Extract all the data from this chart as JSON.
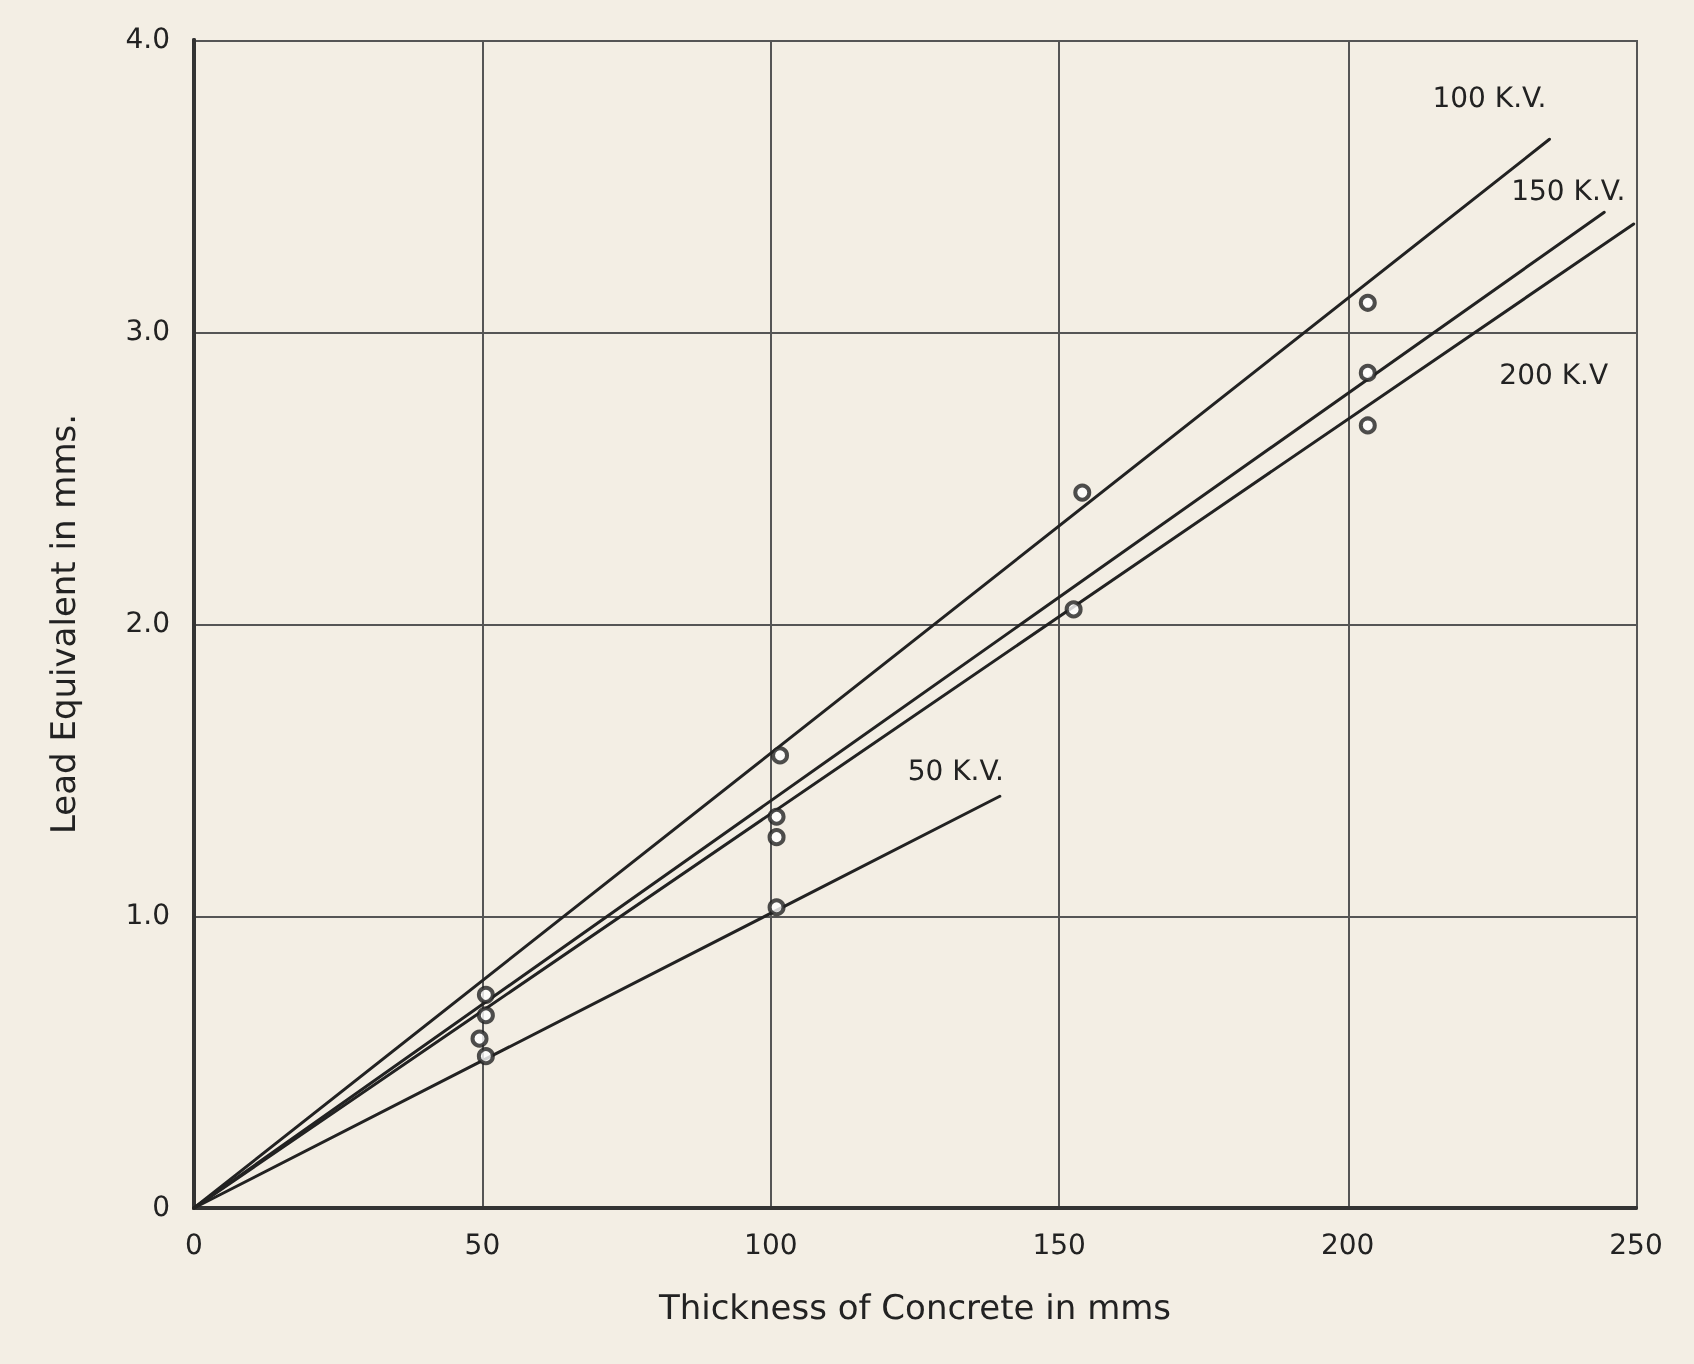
{
  "chart_data": {
    "type": "line",
    "xlabel": "Thickness of Concrete in mms",
    "ylabel": "Lead Equivalent in mms.",
    "xlim": [
      0,
      250
    ],
    "xticks": [
      0,
      50,
      100,
      150,
      200,
      250
    ],
    "ylim": [
      0,
      4
    ],
    "yticks": [
      0,
      {
        "value": 1,
        "label": "1.0"
      },
      {
        "value": 2,
        "label": "2.0"
      },
      {
        "value": 3,
        "label": "3.0"
      },
      {
        "value": 4,
        "label": "4.0"
      }
    ],
    "grid": true,
    "legend": false,
    "line_style": "solid",
    "series": [
      {
        "name": "100 K.V.",
        "marker": "none",
        "color": "#222222",
        "x": [
          0,
          235
        ],
        "values": [
          0,
          3.66
        ]
      },
      {
        "name": "150 K.V.",
        "marker": "none",
        "color": "#222222",
        "x": [
          0,
          244.5
        ],
        "values": [
          0,
          3.41
        ]
      },
      {
        "name": "200 K.V",
        "marker": "none",
        "color": "#222222",
        "x": [
          0,
          249.6
        ],
        "values": [
          0,
          3.37
        ]
      },
      {
        "name": "50 K.V.",
        "marker": "none",
        "color": "#222222",
        "x": [
          0,
          139.7
        ],
        "values": [
          0,
          1.41
        ]
      },
      {
        "type": "scatter",
        "marker": "circle",
        "color": "#222222",
        "x": [
          50.6,
          101.6,
          154,
          203.5
        ],
        "values": [
          0.73,
          1.55,
          2.45,
          3.1
        ]
      },
      {
        "type": "scatter",
        "marker": "circle",
        "color": "#222222",
        "x": [
          50.6,
          101,
          203.5
        ],
        "values": [
          0.66,
          1.34,
          2.86
        ]
      },
      {
        "type": "scatter",
        "marker": "circle",
        "color": "#222222",
        "x": [
          49.5,
          101,
          152.5,
          203.5
        ],
        "values": [
          0.58,
          1.27,
          2.05,
          2.68
        ]
      },
      {
        "type": "scatter",
        "marker": "circle",
        "color": "#222222",
        "x": [
          50.6,
          101
        ],
        "values": [
          0.52,
          1.03
        ]
      }
    ]
  }
}
